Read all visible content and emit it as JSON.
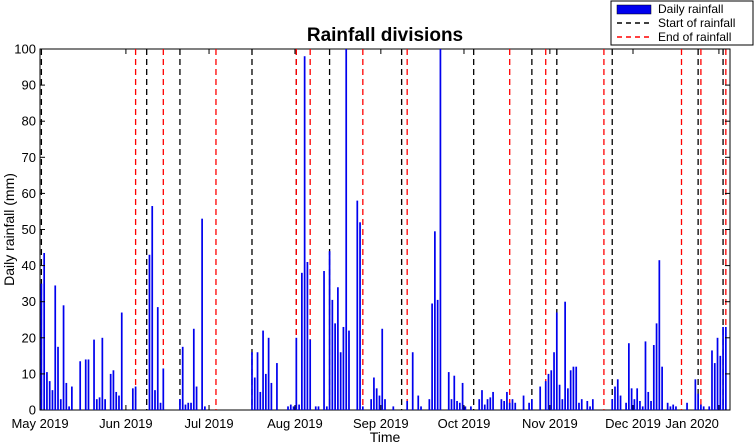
{
  "chart_data": {
    "type": "bar",
    "title": "Rainfall divisions",
    "xlabel": "Time",
    "ylabel": "Daily rainfall (mm)",
    "ylim": [
      0,
      100
    ],
    "yticks": [
      0,
      10,
      20,
      30,
      40,
      50,
      60,
      70,
      80,
      90,
      100
    ],
    "xlim": [
      "2019-05-01",
      "2020-01-05"
    ],
    "xticks": [
      {
        "date": "2019-05-01",
        "label": "May 2019"
      },
      {
        "date": "2019-06-01",
        "label": "Jun 2019"
      },
      {
        "date": "2019-07-01",
        "label": "Jul 2019"
      },
      {
        "date": "2019-08-01",
        "label": "Aug 2019"
      },
      {
        "date": "2019-09-01",
        "label": "Sep 2019"
      },
      {
        "date": "2019-10-01",
        "label": "Oct 2019"
      },
      {
        "date": "2019-11-01",
        "label": "Nov 2019"
      },
      {
        "date": "2019-12-01",
        "label": "Dec 2019"
      },
      {
        "date": "2020-01-01",
        "label": "Jan 2020"
      }
    ],
    "grid": false,
    "legend_position": "top-right",
    "colors": {
      "bar": "#0000ee",
      "start": "#000000",
      "end": "#ff0000"
    },
    "series": [
      {
        "name": "Daily rainfall",
        "style": "bar",
        "points": [
          [
            "2019-05-01",
            35
          ],
          [
            "2019-05-02",
            43.5
          ],
          [
            "2019-05-03",
            10.5
          ],
          [
            "2019-05-04",
            8
          ],
          [
            "2019-05-05",
            5.5
          ],
          [
            "2019-05-06",
            34.5
          ],
          [
            "2019-05-07",
            17.5
          ],
          [
            "2019-05-08",
            3
          ],
          [
            "2019-05-09",
            29
          ],
          [
            "2019-05-10",
            7.5
          ],
          [
            "2019-05-11",
            1
          ],
          [
            "2019-05-12",
            6.5
          ],
          [
            "2019-05-15",
            13.5
          ],
          [
            "2019-05-17",
            14
          ],
          [
            "2019-05-18",
            14
          ],
          [
            "2019-05-20",
            19.5
          ],
          [
            "2019-05-21",
            3
          ],
          [
            "2019-05-22",
            3.5
          ],
          [
            "2019-05-23",
            20
          ],
          [
            "2019-05-24",
            3
          ],
          [
            "2019-05-26",
            10
          ],
          [
            "2019-05-27",
            11
          ],
          [
            "2019-05-28",
            5
          ],
          [
            "2019-05-29",
            4
          ],
          [
            "2019-05-30",
            27
          ],
          [
            "2019-06-03",
            6
          ],
          [
            "2019-06-04",
            6.5
          ],
          [
            "2019-06-09",
            43
          ],
          [
            "2019-06-10",
            56.5
          ],
          [
            "2019-06-11",
            5.5
          ],
          [
            "2019-06-12",
            28.5
          ],
          [
            "2019-06-13",
            2
          ],
          [
            "2019-06-14",
            11.5
          ],
          [
            "2019-06-20",
            3
          ],
          [
            "2019-06-21",
            17.5
          ],
          [
            "2019-06-22",
            1.5
          ],
          [
            "2019-06-23",
            2
          ],
          [
            "2019-06-24",
            2
          ],
          [
            "2019-06-25",
            22.5
          ],
          [
            "2019-06-26",
            6.5
          ],
          [
            "2019-06-28",
            53
          ],
          [
            "2019-06-29",
            1
          ],
          [
            "2019-07-16",
            16
          ],
          [
            "2019-07-17",
            9
          ],
          [
            "2019-07-18",
            16
          ],
          [
            "2019-07-19",
            5
          ],
          [
            "2019-07-20",
            22
          ],
          [
            "2019-07-21",
            10
          ],
          [
            "2019-07-22",
            20
          ],
          [
            "2019-07-23",
            7.5
          ],
          [
            "2019-07-25",
            13
          ],
          [
            "2019-07-29",
            1
          ],
          [
            "2019-07-30",
            1.5
          ],
          [
            "2019-07-31",
            1
          ],
          [
            "2019-08-01",
            20
          ],
          [
            "2019-08-02",
            1.5
          ],
          [
            "2019-08-03",
            38
          ],
          [
            "2019-08-04",
            98
          ],
          [
            "2019-08-05",
            41
          ],
          [
            "2019-08-06",
            19.5
          ],
          [
            "2019-08-08",
            1
          ],
          [
            "2019-08-09",
            1
          ],
          [
            "2019-08-11",
            38.5
          ],
          [
            "2019-08-12",
            1
          ],
          [
            "2019-08-13",
            44
          ],
          [
            "2019-08-14",
            30.5
          ],
          [
            "2019-08-15",
            24
          ],
          [
            "2019-08-16",
            34
          ],
          [
            "2019-08-17",
            16
          ],
          [
            "2019-08-18",
            23
          ],
          [
            "2019-08-19",
            100
          ],
          [
            "2019-08-20",
            22
          ],
          [
            "2019-08-23",
            58
          ],
          [
            "2019-08-24",
            52
          ],
          [
            "2019-08-25",
            1
          ],
          [
            "2019-08-28",
            3
          ],
          [
            "2019-08-29",
            9
          ],
          [
            "2019-08-30",
            6
          ],
          [
            "2019-08-31",
            4
          ],
          [
            "2019-09-01",
            22.5
          ],
          [
            "2019-09-02",
            3
          ],
          [
            "2019-09-05",
            1
          ],
          [
            "2019-09-10",
            2.5
          ],
          [
            "2019-09-12",
            16
          ],
          [
            "2019-09-14",
            4
          ],
          [
            "2019-09-15",
            1
          ],
          [
            "2019-09-18",
            3
          ],
          [
            "2019-09-19",
            29.5
          ],
          [
            "2019-09-20",
            49.5
          ],
          [
            "2019-09-21",
            30.5
          ],
          [
            "2019-09-22",
            100
          ],
          [
            "2019-09-25",
            10.5
          ],
          [
            "2019-09-26",
            3
          ],
          [
            "2019-09-27",
            9.5
          ],
          [
            "2019-09-28",
            2.5
          ],
          [
            "2019-09-29",
            2
          ],
          [
            "2019-09-30",
            7.5
          ],
          [
            "2019-10-01",
            1
          ],
          [
            "2019-10-03",
            1
          ],
          [
            "2019-10-06",
            3
          ],
          [
            "2019-10-07",
            5.5
          ],
          [
            "2019-10-08",
            1.5
          ],
          [
            "2019-10-09",
            3
          ],
          [
            "2019-10-10",
            3.5
          ],
          [
            "2019-10-11",
            5
          ],
          [
            "2019-10-14",
            3
          ],
          [
            "2019-10-15",
            2.5
          ],
          [
            "2019-10-16",
            5
          ],
          [
            "2019-10-17",
            2
          ],
          [
            "2019-10-18",
            3
          ],
          [
            "2019-10-19",
            2
          ],
          [
            "2019-10-22",
            4
          ],
          [
            "2019-10-24",
            2
          ],
          [
            "2019-10-25",
            3
          ],
          [
            "2019-10-28",
            6.5
          ],
          [
            "2019-10-30",
            8
          ],
          [
            "2019-10-31",
            10
          ],
          [
            "2019-11-01",
            11
          ],
          [
            "2019-11-02",
            16
          ],
          [
            "2019-11-03",
            27
          ],
          [
            "2019-11-04",
            7
          ],
          [
            "2019-11-05",
            3
          ],
          [
            "2019-11-06",
            30
          ],
          [
            "2019-11-07",
            6
          ],
          [
            "2019-11-08",
            11
          ],
          [
            "2019-11-09",
            12
          ],
          [
            "2019-11-10",
            12
          ],
          [
            "2019-11-11",
            2
          ],
          [
            "2019-11-12",
            3
          ],
          [
            "2019-11-14",
            2.5
          ],
          [
            "2019-11-15",
            1
          ],
          [
            "2019-11-16",
            3
          ],
          [
            "2019-11-23",
            3
          ],
          [
            "2019-11-24",
            6.5
          ],
          [
            "2019-11-25",
            8.5
          ],
          [
            "2019-11-26",
            4
          ],
          [
            "2019-11-28",
            2
          ],
          [
            "2019-11-29",
            18.5
          ],
          [
            "2019-11-30",
            6
          ],
          [
            "2019-12-01",
            3
          ],
          [
            "2019-12-02",
            6
          ],
          [
            "2019-12-03",
            2.5
          ],
          [
            "2019-12-04",
            1
          ],
          [
            "2019-12-05",
            19
          ],
          [
            "2019-12-06",
            5
          ],
          [
            "2019-12-07",
            2.5
          ],
          [
            "2019-12-08",
            18
          ],
          [
            "2019-12-09",
            24
          ],
          [
            "2019-12-10",
            41.5
          ],
          [
            "2019-12-11",
            12
          ],
          [
            "2019-12-13",
            2
          ],
          [
            "2019-12-14",
            1
          ],
          [
            "2019-12-15",
            1.5
          ],
          [
            "2019-12-16",
            1
          ],
          [
            "2019-12-20",
            2
          ],
          [
            "2019-12-23",
            8.5
          ],
          [
            "2019-12-24",
            4.5
          ],
          [
            "2019-12-25",
            1.5
          ],
          [
            "2019-12-26",
            1
          ],
          [
            "2019-12-28",
            1
          ],
          [
            "2019-12-29",
            16.5
          ],
          [
            "2019-12-30",
            13
          ],
          [
            "2019-12-31",
            20
          ],
          [
            "2020-01-01",
            15
          ],
          [
            "2020-01-02",
            23
          ],
          [
            "2020-01-03",
            23
          ]
        ]
      },
      {
        "name": "Start of rainfall",
        "style": "dashed-vline",
        "dates": [
          "2019-05-01",
          "2019-06-08",
          "2019-06-20",
          "2019-07-16",
          "2019-08-01",
          "2019-08-13",
          "2019-09-08",
          "2019-10-04",
          "2019-10-25",
          "2019-11-03",
          "2019-11-23",
          "2019-12-24",
          "2020-01-02"
        ]
      },
      {
        "name": "End of rainfall",
        "style": "dashed-vline",
        "dates": [
          "2019-06-04",
          "2019-06-14",
          "2019-07-03",
          "2019-08-01",
          "2019-08-06",
          "2019-08-25",
          "2019-09-10",
          "2019-10-17",
          "2019-10-30",
          "2019-11-20",
          "2019-12-18",
          "2019-12-25",
          "2020-01-03"
        ]
      }
    ]
  }
}
